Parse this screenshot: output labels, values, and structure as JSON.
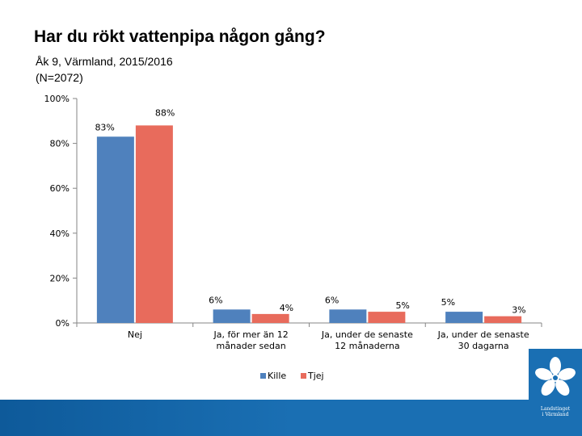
{
  "header": {
    "title": "Har du rökt vattenpipa någon gång?",
    "subtitle_line1": "Åk 9, Värmland, 2015/2016",
    "subtitle_line2": "(N=2072)"
  },
  "logo": {
    "line1": "Landstinget",
    "line2": "i Värmland"
  },
  "colors": {
    "kille": "#4f81bd",
    "tjej": "#e86b5c",
    "footer": "#1a6fb3"
  },
  "chart_data": {
    "type": "bar",
    "title": "Har du rökt vattenpipa någon gång?",
    "xlabel": "",
    "ylabel": "",
    "ylim": [
      0,
      100
    ],
    "yticks": [
      "0%",
      "20%",
      "40%",
      "60%",
      "80%",
      "100%"
    ],
    "ytick_values": [
      0,
      20,
      40,
      60,
      80,
      100
    ],
    "categories": [
      [
        "Nej"
      ],
      [
        "Ja, för mer än 12",
        "månader sedan"
      ],
      [
        "Ja, under de senaste",
        "12 månaderna"
      ],
      [
        "Ja, under de senaste",
        "30 dagarna"
      ]
    ],
    "series": [
      {
        "name": "Kille",
        "values": [
          83,
          6,
          6,
          5
        ],
        "labels": [
          "83%",
          "6%",
          "6%",
          "5%"
        ]
      },
      {
        "name": "Tjej",
        "values": [
          88,
          4,
          5,
          3
        ],
        "labels": [
          "88%",
          "4%",
          "5%",
          "3%"
        ]
      }
    ],
    "legend": "bottom-center",
    "grid": false
  }
}
